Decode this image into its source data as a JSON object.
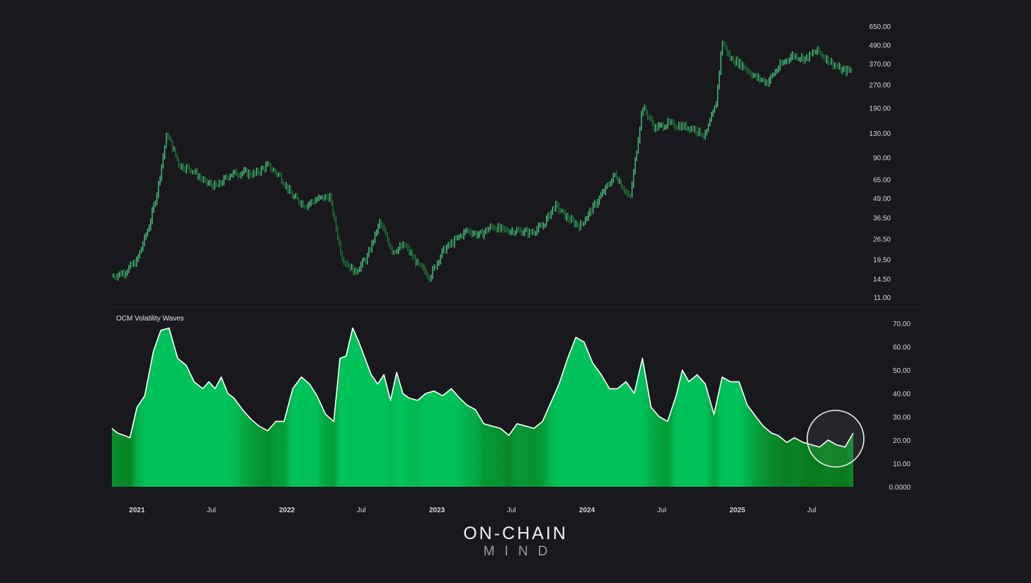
{
  "colors": {
    "background": "#18181d",
    "price_candle_up": "#4fd18a",
    "price_candle_dark": "#1f7a3a",
    "wave_bright": "#00c25a",
    "wave_dark": "#0a7a1e",
    "wave_outline": "#ffffff",
    "axis_text": "#d8d8dc",
    "divider": "#2a2a30"
  },
  "logo": {
    "line1": "ON-CHAIN",
    "line2": "MIND"
  },
  "chart_data": [
    {
      "type": "line",
      "title": "",
      "yscale": "log",
      "ylim": [
        11,
        850
      ],
      "y_tick_labels": [
        "650.00",
        "490.00",
        "370.00",
        "270.00",
        "190.00",
        "130.00",
        "90.00",
        "65.00",
        "49.00",
        "36.50",
        "26.50",
        "19.50",
        "14.50",
        "11.00"
      ],
      "x_tick_labels": [
        "2021",
        "Jul",
        "2022",
        "Jul",
        "2023",
        "Jul",
        "2024",
        "Jul",
        "2025",
        "Jul"
      ],
      "x": [
        "2020-11-01",
        "2020-12-01",
        "2021-01-01",
        "2021-02-01",
        "2021-02-20",
        "2021-03-15",
        "2021-04-15",
        "2021-05-15",
        "2021-06-15",
        "2021-07-15",
        "2021-08-15",
        "2021-09-15",
        "2021-10-15",
        "2021-11-15",
        "2021-12-15",
        "2022-01-15",
        "2022-02-15",
        "2022-03-15",
        "2022-04-15",
        "2022-05-15",
        "2022-06-15",
        "2022-07-15",
        "2022-08-15",
        "2022-09-15",
        "2022-10-15",
        "2022-11-15",
        "2022-12-15",
        "2023-01-15",
        "2023-02-15",
        "2023-03-15",
        "2023-04-15",
        "2023-05-15",
        "2023-06-15",
        "2023-07-15",
        "2023-08-15",
        "2023-09-15",
        "2023-10-15",
        "2023-11-15",
        "2023-12-15",
        "2024-01-15",
        "2024-02-15",
        "2024-03-10",
        "2024-04-15",
        "2024-05-15",
        "2024-06-15",
        "2024-07-15",
        "2024-08-15",
        "2024-09-15",
        "2024-10-15",
        "2024-11-10",
        "2024-11-25",
        "2024-12-15",
        "2025-01-15",
        "2025-02-15",
        "2025-03-15",
        "2025-04-15",
        "2025-05-15",
        "2025-06-15",
        "2025-07-15",
        "2025-08-15",
        "2025-09-15",
        "2025-10-10"
      ],
      "series": [
        {
          "values": [
            15,
            16,
            19,
            33,
            55,
            130,
            80,
            75,
            62,
            58,
            70,
            72,
            70,
            80,
            68,
            50,
            44,
            48,
            50,
            20,
            16,
            20,
            34,
            22,
            24,
            18,
            15,
            22,
            26,
            30,
            28,
            32,
            30,
            30,
            29,
            32,
            44,
            36,
            32,
            42,
            56,
            70,
            48,
            195,
            140,
            150,
            145,
            140,
            125,
            200,
            520,
            400,
            360,
            300,
            280,
            360,
            420,
            400,
            450,
            380,
            330,
            340
          ]
        }
      ]
    },
    {
      "type": "area",
      "title": "OCM Volatility Waves",
      "ylim": [
        0,
        70
      ],
      "y_tick_labels": [
        "70.00",
        "60.00",
        "50.00",
        "40.00",
        "30.00",
        "20.00",
        "10.00",
        "0.0000"
      ],
      "x_tick_labels": [
        "2021",
        "Jul",
        "2022",
        "Jul",
        "2023",
        "Jul",
        "2024",
        "Jul",
        "2025",
        "Jul"
      ],
      "x": [
        "2020-11-01",
        "2020-11-15",
        "2020-12-01",
        "2020-12-15",
        "2021-01-01",
        "2021-01-20",
        "2021-02-10",
        "2021-02-28",
        "2021-03-20",
        "2021-04-10",
        "2021-05-01",
        "2021-05-20",
        "2021-06-10",
        "2021-06-25",
        "2021-07-10",
        "2021-07-25",
        "2021-08-10",
        "2021-08-25",
        "2021-09-15",
        "2021-10-05",
        "2021-10-25",
        "2021-11-15",
        "2021-12-05",
        "2021-12-25",
        "2022-01-15",
        "2022-02-05",
        "2022-02-25",
        "2022-03-15",
        "2022-04-05",
        "2022-04-25",
        "2022-05-10",
        "2022-05-25",
        "2022-06-10",
        "2022-06-25",
        "2022-07-10",
        "2022-07-25",
        "2022-08-10",
        "2022-08-25",
        "2022-09-10",
        "2022-09-25",
        "2022-10-10",
        "2022-10-25",
        "2022-11-15",
        "2022-12-05",
        "2022-12-25",
        "2023-01-15",
        "2023-02-05",
        "2023-02-25",
        "2023-03-15",
        "2023-04-05",
        "2023-04-25",
        "2023-05-15",
        "2023-06-05",
        "2023-06-25",
        "2023-07-15",
        "2023-08-05",
        "2023-08-25",
        "2023-09-15",
        "2023-10-05",
        "2023-10-25",
        "2023-11-15",
        "2023-12-05",
        "2023-12-25",
        "2024-01-15",
        "2024-02-05",
        "2024-02-25",
        "2024-03-15",
        "2024-04-05",
        "2024-04-25",
        "2024-05-15",
        "2024-06-05",
        "2024-06-25",
        "2024-07-15",
        "2024-08-05",
        "2024-08-20",
        "2024-09-05",
        "2024-09-25",
        "2024-10-15",
        "2024-11-05",
        "2024-11-25",
        "2024-12-15",
        "2025-01-05",
        "2025-01-25",
        "2025-02-15",
        "2025-03-05",
        "2025-03-25",
        "2025-04-10",
        "2025-05-01",
        "2025-05-20",
        "2025-06-10",
        "2025-06-30",
        "2025-07-20",
        "2025-08-10",
        "2025-08-30",
        "2025-09-20",
        "2025-10-10"
      ],
      "series": [
        {
          "name": "OCM Volatility Waves",
          "values": [
            25,
            23,
            22,
            21,
            34,
            39,
            58,
            67,
            68,
            55,
            52,
            45,
            42,
            45,
            42,
            47,
            40,
            38,
            33,
            29,
            26,
            24,
            28,
            28,
            42,
            47,
            44,
            39,
            31,
            28,
            55,
            56,
            68,
            62,
            55,
            48,
            44,
            48,
            37,
            49,
            40,
            38,
            37,
            40,
            41,
            39,
            42,
            38,
            35,
            33,
            27,
            26,
            25,
            22,
            27,
            26,
            25,
            28,
            36,
            44,
            55,
            64,
            62,
            53,
            48,
            42,
            42,
            45,
            40,
            55,
            34,
            30,
            28,
            39,
            50,
            45,
            48,
            44,
            31,
            47,
            45,
            45,
            35,
            30,
            26,
            23,
            22,
            19,
            21,
            19,
            18,
            17,
            20,
            18,
            17,
            23
          ]
        }
      ]
    }
  ]
}
